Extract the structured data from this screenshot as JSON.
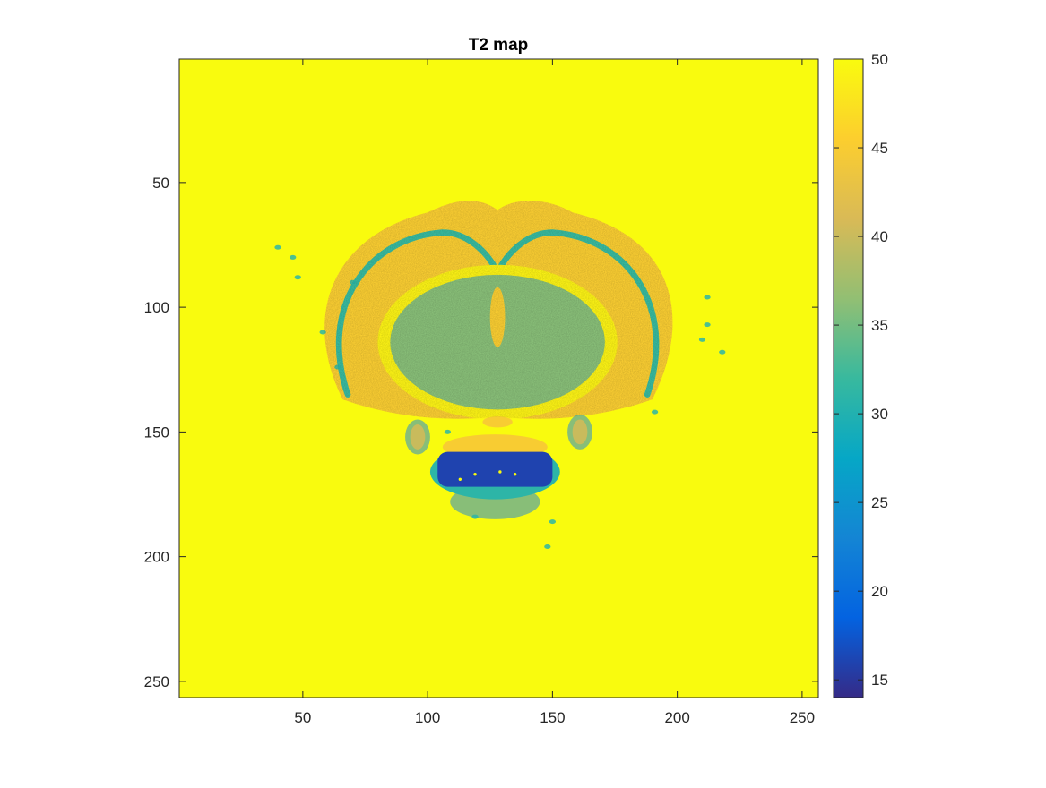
{
  "chart_data": {
    "type": "heatmap",
    "title": "T2 map",
    "xlabel": "",
    "ylabel": "",
    "x_ticks": [
      50,
      100,
      150,
      200,
      250
    ],
    "y_ticks": [
      50,
      100,
      150,
      200,
      250
    ],
    "xlim": [
      0.5,
      256.5
    ],
    "ylim": [
      0.5,
      256.5
    ],
    "y_direction": "reverse",
    "image_size": [
      256,
      256
    ],
    "colormap": "parula",
    "clim": [
      14,
      50
    ],
    "colorbar": {
      "ticks": [
        15,
        20,
        25,
        30,
        35,
        40,
        45,
        50
      ],
      "location": "right"
    },
    "regions": [
      {
        "name": "background",
        "value": 50
      },
      {
        "name": "cortex",
        "value": 45
      },
      {
        "name": "inner-brain",
        "value": 36
      },
      {
        "name": "corpus-callosum",
        "value": 32
      },
      {
        "name": "ventricle",
        "value": 49
      },
      {
        "name": "ventral-mass",
        "value": 16
      },
      {
        "name": "ventral-surround",
        "value": 31
      },
      {
        "name": "lateral-ovals",
        "value": 40
      }
    ]
  },
  "colors": {
    "parula": [
      "#352a87",
      "#0363e1",
      "#1485d4",
      "#06a7c6",
      "#38b99e",
      "#92bf73",
      "#d9ba56",
      "#fcce2e",
      "#f9fb0e"
    ]
  }
}
